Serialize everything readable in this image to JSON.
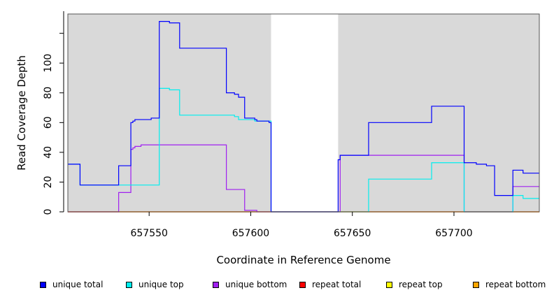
{
  "chart_data": {
    "type": "line",
    "title": "",
    "xlabel": "Coordinate in Reference Genome",
    "ylabel": "Read Coverage Depth",
    "xlim": [
      657510,
      657742
    ],
    "ylim": [
      0,
      133
    ],
    "x_ticks": [
      657550,
      657600,
      657650,
      657700
    ],
    "x_tick_labels": [
      "657550",
      "657600",
      "657650",
      "657700"
    ],
    "y_ticks": [
      0,
      20,
      40,
      60,
      80,
      100
    ],
    "y_tick_labels": [
      "0",
      "20",
      "40",
      "60",
      "80",
      "100"
    ],
    "grid": false,
    "legend_position": "bottom",
    "shaded_regions": [
      [
        657510,
        657610
      ],
      [
        657643,
        657742
      ]
    ],
    "shade_color": "#d9d9d9",
    "series": [
      {
        "name": "unique total",
        "color": "#0000ff",
        "x": [
          657510,
          657516,
          657535,
          657541,
          657542,
          657543,
          657546,
          657551,
          657555,
          657560,
          657565,
          657588,
          657592,
          657594,
          657597,
          657602,
          657603,
          657609,
          657610,
          657643,
          657644,
          657658,
          657689,
          657705,
          657711,
          657716,
          657720,
          657729,
          657734,
          657742
        ],
        "y": [
          32,
          18,
          31,
          60,
          61,
          62,
          62,
          63,
          128,
          127,
          110,
          80,
          79,
          77,
          63,
          62,
          61,
          60,
          0,
          35,
          38,
          60,
          71,
          33,
          32,
          31,
          11,
          28,
          26,
          26
        ]
      },
      {
        "name": "unique top",
        "color": "#00eeee",
        "x": [
          657510,
          657516,
          657555,
          657560,
          657565,
          657592,
          657594,
          657602,
          657610,
          657658,
          657689,
          657705,
          657729,
          657734,
          657742
        ],
        "y": [
          32,
          18,
          83,
          82,
          65,
          64,
          62,
          61,
          0,
          22,
          33,
          0,
          11,
          9,
          9
        ]
      },
      {
        "name": "unique bottom",
        "color": "#a020f0",
        "x": [
          657510,
          657535,
          657541,
          657542,
          657543,
          657546,
          657588,
          657597,
          657603,
          657610,
          657644,
          657705,
          657729,
          657742
        ],
        "y": [
          0,
          13,
          42,
          43,
          44,
          45,
          15,
          1,
          0,
          0,
          38,
          0,
          17,
          17
        ]
      },
      {
        "name": "repeat total",
        "color": "#ff0000",
        "x": [
          657510,
          657742
        ],
        "y": [
          0,
          0
        ]
      },
      {
        "name": "repeat top",
        "color": "#ffff00",
        "x": [
          657510,
          657742
        ],
        "y": [
          0,
          0
        ]
      },
      {
        "name": "repeat bottom",
        "color": "#ffa500",
        "x": [
          657510,
          657742
        ],
        "y": [
          0,
          0
        ]
      }
    ]
  }
}
